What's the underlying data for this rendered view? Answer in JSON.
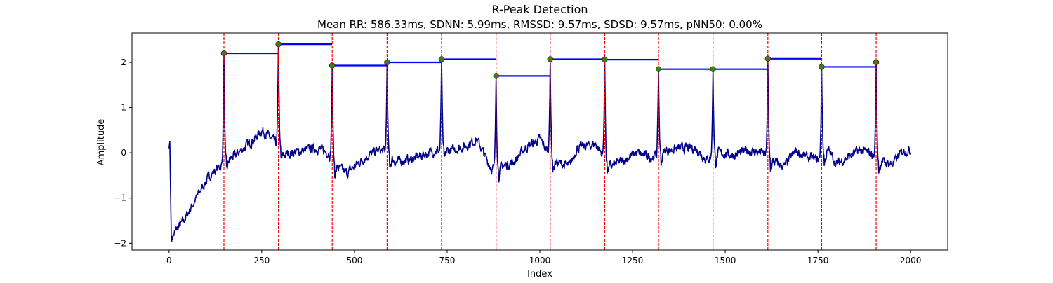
{
  "chart_data": {
    "type": "line",
    "title": "R-Peak Detection",
    "subtitle": "Mean RR: 586.33ms, SDNN: 5.99ms, RMSSD: 9.57ms, SDSD: 9.57ms, pNN50: 0.00%",
    "xlabel": "Index",
    "ylabel": "Amplitude",
    "xlim": [
      -100,
      2100
    ],
    "ylim": [
      -2.15,
      2.65
    ],
    "xticks": [
      0,
      250,
      500,
      750,
      1000,
      1250,
      1500,
      1750,
      2000
    ],
    "yticks": [
      -2,
      -1,
      0,
      1,
      2
    ],
    "grid": false,
    "colors": {
      "signal": "#00008b",
      "peak_line": "#ff0000",
      "peak_marker": "#228b22",
      "peak_marker_edge": "#8b0000",
      "rr_segment": "#0000ff"
    },
    "r_peaks": {
      "x": [
        148,
        295,
        440,
        588,
        735,
        882,
        1028,
        1175,
        1320,
        1467,
        1615,
        1760,
        1907
      ],
      "y": [
        2.2,
        2.4,
        1.93,
        2.0,
        2.07,
        1.7,
        2.07,
        2.06,
        1.85,
        1.85,
        2.08,
        1.9,
        2.0
      ]
    },
    "rr_segments": [
      {
        "x0": 148,
        "x1": 295,
        "y": 2.2
      },
      {
        "x0": 295,
        "x1": 440,
        "y": 2.4
      },
      {
        "x0": 440,
        "x1": 588,
        "y": 1.93
      },
      {
        "x0": 588,
        "x1": 735,
        "y": 2.0
      },
      {
        "x0": 735,
        "x1": 882,
        "y": 2.07
      },
      {
        "x0": 882,
        "x1": 1028,
        "y": 1.7
      },
      {
        "x0": 1028,
        "x1": 1175,
        "y": 2.07
      },
      {
        "x0": 1175,
        "x1": 1320,
        "y": 2.06
      },
      {
        "x0": 1320,
        "x1": 1467,
        "y": 1.85
      },
      {
        "x0": 1467,
        "x1": 1615,
        "y": 1.85
      },
      {
        "x0": 1615,
        "x1": 1760,
        "y": 2.08
      },
      {
        "x0": 1760,
        "x1": 1907,
        "y": 1.9
      }
    ],
    "baseline": {
      "x": [
        0,
        2,
        6,
        10,
        20,
        40,
        60,
        90,
        110,
        130,
        145,
        180,
        200,
        230,
        250,
        270,
        285,
        310,
        330,
        360,
        400,
        430,
        450,
        480,
        500,
        530,
        560,
        580,
        610,
        650,
        700,
        720,
        760,
        800,
        830,
        860,
        870,
        900,
        930,
        960,
        1000,
        1040,
        1080,
        1100,
        1150,
        1190,
        1230,
        1260,
        1300,
        1340,
        1380,
        1420,
        1450,
        1480,
        1520,
        1560,
        1600,
        1630,
        1660,
        1690,
        1720,
        1750,
        1780,
        1800,
        1830,
        1860,
        1890,
        1920,
        1950,
        1980,
        2000
      ],
      "y": [
        0.1,
        0.25,
        -1.9,
        -1.85,
        -1.7,
        -1.5,
        -1.2,
        -0.75,
        -0.5,
        -0.35,
        -0.25,
        -0.05,
        0.1,
        0.3,
        0.5,
        0.35,
        0.25,
        -0.05,
        0.0,
        0.05,
        0.1,
        0.0,
        -0.3,
        -0.45,
        -0.3,
        -0.1,
        0.05,
        0.05,
        -0.2,
        -0.15,
        0.0,
        0.05,
        0.05,
        0.15,
        0.3,
        -0.2,
        -0.35,
        -0.3,
        -0.2,
        0.1,
        0.3,
        -0.2,
        -0.3,
        0.1,
        0.2,
        -0.3,
        -0.15,
        0.0,
        -0.1,
        0.05,
        0.1,
        0.1,
        -0.15,
        0.0,
        -0.05,
        0.05,
        0.0,
        -0.2,
        -0.3,
        0.05,
        -0.1,
        -0.15,
        0.05,
        -0.25,
        -0.1,
        0.05,
        0.0,
        -0.2,
        -0.25,
        0.05,
        0.05
      ]
    }
  }
}
